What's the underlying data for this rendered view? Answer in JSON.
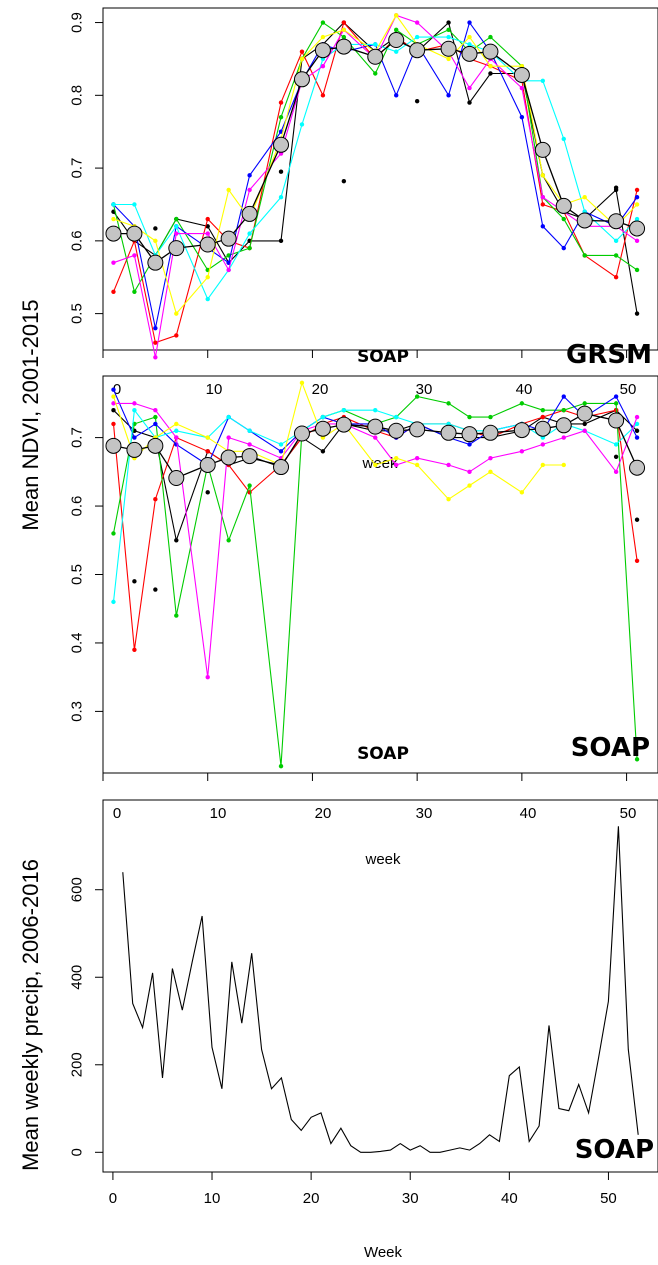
{
  "figure": {
    "ylabel_ndvi": "Mean NDVI, 2001-2015",
    "ylabel_precip": "Mean weekly precip, 2006-2016",
    "xlabel": "Week"
  },
  "chart_data": [
    {
      "type": "line",
      "panel": "ndvi-grsm",
      "site_label": "GRSM",
      "inner_label": "SOAP",
      "ylim": [
        0.45,
        0.92
      ],
      "yticks": [
        0.5,
        0.6,
        0.7,
        0.8,
        0.9
      ],
      "xlim": [
        0,
        53
      ],
      "x": [
        1,
        3,
        5,
        7,
        10,
        12,
        14,
        17,
        19,
        21,
        23,
        26,
        28,
        30,
        33,
        35,
        37,
        40,
        42,
        44,
        46,
        49,
        51
      ],
      "series_colors": [
        "#000000",
        "#ff0000",
        "#00cc00",
        "#0000ff",
        "#00ffff",
        "#ff00ff",
        "#ffff00"
      ],
      "series": [
        {
          "values": [
            0.64,
            0.6,
            0.58,
            0.63,
            0.62,
            0.57,
            0.6,
            0.6,
            0.85,
            0.87,
            0.9,
            0.86,
            0.88,
            0.86,
            0.9,
            0.79,
            0.83,
            0.83,
            0.69,
            0.64,
            0.63,
            0.67,
            0.5
          ]
        },
        {
          "values": [
            0.53,
            0.6,
            0.46,
            0.47,
            0.63,
            0.6,
            0.59,
            0.79,
            0.86,
            0.8,
            0.9,
            0.85,
            0.88,
            0.86,
            0.87,
            0.85,
            0.84,
            0.82,
            0.65,
            0.64,
            0.58,
            0.55,
            0.67
          ]
        },
        {
          "values": [
            0.65,
            0.53,
            0.58,
            0.63,
            0.56,
            0.58,
            0.59,
            0.77,
            0.85,
            0.9,
            0.88,
            0.83,
            0.89,
            0.87,
            0.89,
            0.86,
            0.88,
            0.84,
            0.66,
            0.63,
            0.58,
            0.58,
            0.56
          ]
        },
        {
          "values": [
            0.65,
            0.62,
            0.48,
            0.62,
            0.59,
            0.57,
            0.69,
            0.75,
            0.82,
            0.87,
            0.86,
            0.87,
            0.8,
            0.87,
            0.8,
            0.9,
            0.86,
            0.77,
            0.62,
            0.59,
            0.64,
            0.62,
            0.66
          ]
        },
        {
          "values": [
            0.65,
            0.65,
            0.58,
            0.62,
            0.52,
            0.56,
            0.61,
            0.66,
            0.76,
            0.85,
            0.87,
            0.87,
            0.86,
            0.88,
            0.88,
            0.87,
            0.86,
            0.82,
            0.82,
            0.74,
            0.64,
            0.6,
            0.63
          ]
        },
        {
          "values": [
            0.57,
            0.58,
            0.44,
            0.61,
            0.61,
            0.56,
            0.67,
            0.72,
            0.82,
            0.84,
            0.89,
            0.85,
            0.91,
            0.9,
            0.86,
            0.81,
            0.85,
            0.81,
            0.66,
            0.64,
            0.62,
            0.62,
            0.6
          ]
        },
        {
          "values": [
            0.63,
            0.62,
            0.6,
            0.5,
            0.55,
            0.67,
            0.63,
            0.74,
            0.85,
            0.88,
            0.89,
            0.86,
            0.91,
            0.87,
            0.85,
            0.88,
            0.84,
            0.84,
            0.69,
            0.65,
            0.66,
            0.62,
            0.65
          ]
        }
      ],
      "mean": [
        0.61,
        0.61,
        0.57,
        0.59,
        0.595,
        0.603,
        0.637,
        0.732,
        0.822,
        0.862,
        0.867,
        0.853,
        0.876,
        0.862,
        0.864,
        0.857,
        0.86,
        0.828,
        0.725,
        0.648,
        0.628,
        0.627,
        0.617
      ],
      "outliers": [
        {
          "x": 23,
          "y": 0.682
        },
        {
          "x": 30,
          "y": 0.792
        },
        {
          "x": 49,
          "y": 0.673
        },
        {
          "x": 17,
          "y": 0.695
        },
        {
          "x": 5,
          "y": 0.617
        }
      ]
    },
    {
      "type": "line",
      "panel": "ndvi-soap",
      "site_label": "SOAP",
      "inner_label": "SOAP",
      "top_axis_label": "week",
      "ylim": [
        0.21,
        0.79
      ],
      "yticks": [
        0.3,
        0.4,
        0.5,
        0.6,
        0.7
      ],
      "xlim": [
        0,
        53
      ],
      "xticks_top": [
        0,
        10,
        20,
        30,
        40,
        50
      ],
      "x": [
        1,
        3,
        5,
        7,
        10,
        12,
        14,
        17,
        19,
        21,
        23,
        26,
        28,
        30,
        33,
        35,
        37,
        40,
        42,
        44,
        46,
        49,
        51
      ],
      "series_colors": [
        "#000000",
        "#ff0000",
        "#00cc00",
        "#0000ff",
        "#00ffff",
        "#ff00ff",
        "#ffff00"
      ],
      "series": [
        {
          "values": [
            0.74,
            0.71,
            0.7,
            0.55,
            0.68,
            0.66,
            0.67,
            0.66,
            0.7,
            0.68,
            0.72,
            0.71,
            0.71,
            0.72,
            0.7,
            0.7,
            0.7,
            0.71,
            0.73,
            0.72,
            0.72,
            0.74,
            0.71
          ]
        },
        {
          "values": [
            0.72,
            0.39,
            0.61,
            0.7,
            0.68,
            0.66,
            0.62,
            0.66,
            0.7,
            0.72,
            0.73,
            0.71,
            0.7,
            0.72,
            0.72,
            0.71,
            0.7,
            0.72,
            0.73,
            0.74,
            0.73,
            0.74,
            0.52
          ]
        },
        {
          "values": [
            0.56,
            0.72,
            0.73,
            0.44,
            0.66,
            0.55,
            0.63,
            0.22,
            0.71,
            0.73,
            0.74,
            0.72,
            0.73,
            0.76,
            0.75,
            0.73,
            0.73,
            0.75,
            0.74,
            0.74,
            0.75,
            0.75,
            0.23
          ]
        },
        {
          "values": [
            0.77,
            0.7,
            0.72,
            0.69,
            0.66,
            0.73,
            0.71,
            0.68,
            0.71,
            0.73,
            0.72,
            0.72,
            0.7,
            0.72,
            0.7,
            0.69,
            0.71,
            0.72,
            0.71,
            0.76,
            0.73,
            0.76,
            0.7
          ]
        },
        {
          "values": [
            0.46,
            0.74,
            0.7,
            0.71,
            0.7,
            0.73,
            0.71,
            0.69,
            0.71,
            0.73,
            0.74,
            0.74,
            0.73,
            0.72,
            0.72,
            0.71,
            0.71,
            0.72,
            0.7,
            0.72,
            0.71,
            0.69,
            0.72
          ]
        },
        {
          "values": [
            0.75,
            0.75,
            0.74,
            0.7,
            0.35,
            0.7,
            0.69,
            0.67,
            0.71,
            0.72,
            0.72,
            0.7,
            0.66,
            0.67,
            0.66,
            0.65,
            0.67,
            0.68,
            0.69,
            0.7,
            0.71,
            0.65,
            0.73
          ]
        },
        {
          "values": [
            0.76,
            0.67,
            0.7,
            0.72,
            0.7,
            0.68,
            0.68,
            0.66,
            0.78,
            0.7,
            0.72,
            0.66,
            0.67,
            0.66,
            0.61,
            0.63,
            0.65,
            0.62,
            0.66,
            0.66,
            null,
            null,
            null
          ]
        }
      ],
      "mean": [
        0.688,
        0.682,
        0.688,
        0.641,
        0.66,
        0.671,
        0.673,
        0.657,
        0.706,
        0.713,
        0.719,
        0.716,
        0.71,
        0.712,
        0.707,
        0.705,
        0.707,
        0.711,
        0.713,
        0.718,
        0.735,
        0.725,
        0.656
      ],
      "outliers": [
        {
          "x": 3,
          "y": 0.49
        },
        {
          "x": 5,
          "y": 0.478
        },
        {
          "x": 10,
          "y": 0.62
        },
        {
          "x": 49,
          "y": 0.672
        },
        {
          "x": 51,
          "y": 0.58
        }
      ]
    },
    {
      "type": "line",
      "panel": "precip-soap",
      "site_label": "SOAP",
      "top_axis_label": "week",
      "ylim": [
        -45,
        805
      ],
      "yticks": [
        0,
        200,
        400,
        600
      ],
      "xlim": [
        -1,
        55
      ],
      "xticks": [
        0,
        10,
        20,
        30,
        40,
        50
      ],
      "xticks_top": [
        0,
        10,
        20,
        30,
        40,
        50
      ],
      "x": [
        1,
        2,
        3,
        4,
        5,
        6,
        7,
        8,
        9,
        10,
        11,
        12,
        13,
        14,
        15,
        16,
        17,
        18,
        19,
        20,
        21,
        22,
        23,
        24,
        25,
        26,
        27,
        28,
        29,
        30,
        31,
        32,
        33,
        34,
        35,
        36,
        37,
        38,
        39,
        40,
        41,
        42,
        43,
        44,
        45,
        46,
        47,
        48,
        49,
        50,
        51,
        52,
        53
      ],
      "values": [
        640,
        340,
        285,
        410,
        170,
        420,
        325,
        435,
        540,
        240,
        145,
        435,
        295,
        455,
        235,
        145,
        170,
        75,
        50,
        80,
        90,
        20,
        55,
        15,
        0,
        0,
        2,
        5,
        20,
        5,
        15,
        0,
        0,
        5,
        10,
        5,
        20,
        40,
        25,
        175,
        195,
        25,
        60,
        290,
        100,
        95,
        155,
        90,
        215,
        345,
        745,
        235,
        40
      ]
    }
  ]
}
